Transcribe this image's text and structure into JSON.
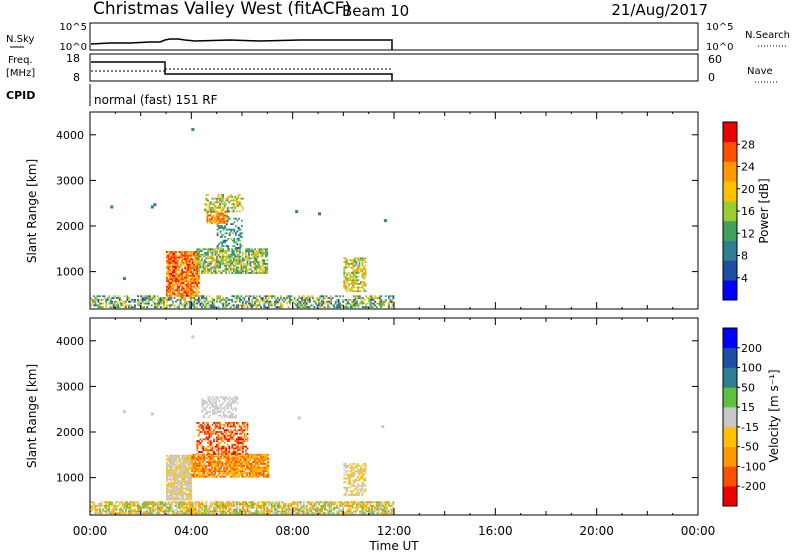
{
  "header": {
    "title": "Christmas Valley West (fitACF)",
    "beam": "Beam 10",
    "date": "21/Aug/2017"
  },
  "cpid": {
    "label": "CPID",
    "value": "normal (fast) 151 RF"
  },
  "panels": {
    "nsky": {
      "label": "N.Sky",
      "left_ticks": [
        "10^5",
        "10^0"
      ],
      "right_label": "N.Search",
      "right_ticks": [
        "10^5",
        "10^0"
      ]
    },
    "freq": {
      "label_line1": "Freq.",
      "label_line2": "[MHz]",
      "left_ticks": [
        "18",
        "8"
      ],
      "right_label": "Nave",
      "right_ticks": [
        "60",
        "0"
      ]
    }
  },
  "colors": {
    "power": [
      "#0000ff",
      "#1c4fa3",
      "#2f7f93",
      "#3fa060",
      "#9acd32",
      "#ffc000",
      "#ff9a00",
      "#ff5000",
      "#ee0000"
    ],
    "velocity": [
      "#ee0000",
      "#ff5000",
      "#ff9a00",
      "#ffc000",
      "#c8c8c8",
      "#60c040",
      "#2f7f93",
      "#1c4fa3",
      "#0000ff"
    ]
  },
  "chart_data": [
    {
      "type": "heatmap",
      "quantity": "power",
      "ylabel": "Slant Range [km]",
      "xlabel": "",
      "x_range": [
        0,
        24
      ],
      "ylim": [
        180,
        4500
      ],
      "y_ticks": [
        1000,
        2000,
        3000,
        4000
      ],
      "colorbar_label": "Power [dB]",
      "colorbar_ticks": [
        4,
        8,
        12,
        16,
        20,
        24,
        28
      ],
      "clim": [
        0,
        32
      ],
      "data_end_hour": 12,
      "regions": [
        {
          "t0": 0.0,
          "t1": 12.0,
          "r0": 200,
          "r1": 480,
          "density": 0.55,
          "vmin": 4,
          "vmax": 22
        },
        {
          "t0": 3.0,
          "t1": 4.3,
          "r0": 450,
          "r1": 1450,
          "density": 0.85,
          "vmin": 18,
          "vmax": 30
        },
        {
          "t0": 4.2,
          "t1": 7.0,
          "r0": 950,
          "r1": 1500,
          "density": 0.7,
          "vmin": 8,
          "vmax": 22
        },
        {
          "t0": 5.0,
          "t1": 6.0,
          "r0": 1500,
          "r1": 2200,
          "density": 0.4,
          "vmin": 6,
          "vmax": 16
        },
        {
          "t0": 4.6,
          "t1": 5.4,
          "r0": 2050,
          "r1": 2300,
          "density": 0.8,
          "vmin": 20,
          "vmax": 28
        },
        {
          "t0": 4.5,
          "t1": 6.0,
          "r0": 2300,
          "r1": 2700,
          "density": 0.5,
          "vmin": 10,
          "vmax": 24
        },
        {
          "t0": 10.0,
          "t1": 10.9,
          "r0": 550,
          "r1": 1300,
          "density": 0.55,
          "vmin": 12,
          "vmax": 24
        }
      ],
      "specks": [
        [
          0.8,
          2450
        ],
        [
          2.4,
          2450
        ],
        [
          2.5,
          2500
        ],
        [
          1.3,
          880
        ],
        [
          4.0,
          4150
        ],
        [
          8.1,
          2350
        ],
        [
          9.0,
          2300
        ],
        [
          11.6,
          2150
        ]
      ]
    },
    {
      "type": "heatmap",
      "quantity": "velocity",
      "ylabel": "Slant Range [km]",
      "xlabel": "Time UT",
      "x_range": [
        0,
        24
      ],
      "x_ticks": [
        "00:00",
        "04:00",
        "08:00",
        "12:00",
        "16:00",
        "20:00",
        "00:00"
      ],
      "ylim": [
        180,
        4500
      ],
      "y_ticks": [
        1000,
        2000,
        3000,
        4000
      ],
      "colorbar_label": "Velocity [m s⁻¹]",
      "colorbar_ticks": [
        "-200",
        "-100",
        "-50",
        "-15",
        "15",
        "50",
        "100",
        "200"
      ],
      "data_end_hour": 12,
      "regions": [
        {
          "t0": 0.0,
          "t1": 12.0,
          "r0": 200,
          "r1": 450,
          "density": 0.75,
          "palette": [
            "#ffc000",
            "#ff9a00",
            "#c8c8c8",
            "#60c040"
          ]
        },
        {
          "t0": 3.0,
          "t1": 4.0,
          "r0": 500,
          "r1": 1500,
          "density": 0.9,
          "palette": [
            "#c8c8c8",
            "#c8c8c8",
            "#ffc000"
          ]
        },
        {
          "t0": 4.0,
          "t1": 7.0,
          "r0": 1000,
          "r1": 1500,
          "density": 0.85,
          "palette": [
            "#ff9a00",
            "#ff5000",
            "#ffc000"
          ]
        },
        {
          "t0": 4.2,
          "t1": 6.2,
          "r0": 1500,
          "r1": 2200,
          "density": 0.55,
          "palette": [
            "#ff5000",
            "#ff9a00",
            "#ee0000"
          ]
        },
        {
          "t0": 4.4,
          "t1": 5.8,
          "r0": 2300,
          "r1": 2750,
          "density": 0.5,
          "palette": [
            "#c8c8c8"
          ]
        },
        {
          "t0": 10.0,
          "t1": 10.9,
          "r0": 600,
          "r1": 1300,
          "density": 0.55,
          "palette": [
            "#c8c8c8",
            "#ffc000"
          ]
        }
      ],
      "specks": [
        [
          1.3,
          2480
        ],
        [
          2.4,
          2430
        ],
        [
          4.0,
          4120
        ],
        [
          8.2,
          2340
        ],
        [
          11.5,
          2150
        ]
      ]
    }
  ]
}
